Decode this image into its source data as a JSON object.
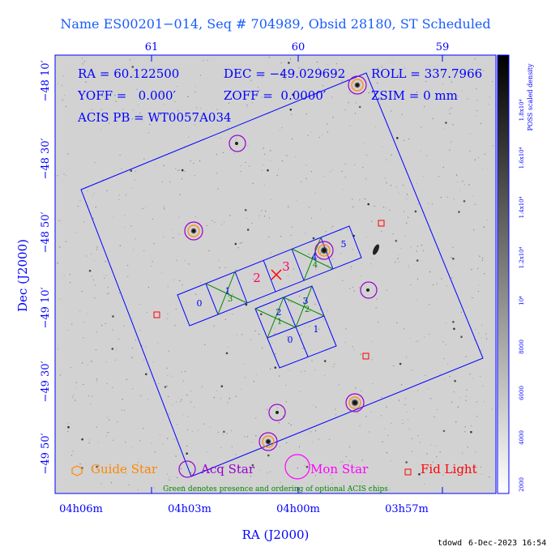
{
  "header": {
    "title": "Name ES00201−014, Seq # 704989, Obsid 28180, ST Scheduled"
  },
  "top_axis_ticks": [
    "61",
    "60",
    "59"
  ],
  "x_axis": {
    "label": "RA (J2000)",
    "ticks": [
      "04h06m",
      "04h03m",
      "04h00m",
      "03h57m"
    ]
  },
  "y_axis": {
    "label": "Dec (J2000)",
    "ticks": [
      "−48 10′",
      "−48 30′",
      "−48 50′",
      "−49 10′",
      "−49 30′",
      "−49 50′"
    ]
  },
  "info": {
    "ra": "RA = 60.122500",
    "dec": "DEC = −49.029692",
    "roll": "ROLL = 337.7966",
    "yoff": "YOFF =   0.000′",
    "zoff": "ZOFF =  0.0000′",
    "zsim": "ZSIM = 0 mm",
    "acis": "ACIS PB = WT0057A034"
  },
  "colorbar": {
    "label": "POSS scaled density",
    "ticks": [
      "2000",
      "4000",
      "6000",
      "8000",
      "10⁴",
      "1.2x10⁴",
      "1.4x10⁴",
      "1.6x10⁴",
      "1.8x10⁴"
    ]
  },
  "legend": {
    "guide": "Guide Star",
    "acq": "Acq Star",
    "mon": "Mon Star",
    "fid": "Fid Light",
    "note": "Green denotes presence and ordering of optional ACIS chips"
  },
  "chips": {
    "s_row": [
      "0",
      "1",
      "2",
      "3",
      "4",
      "5"
    ],
    "i_array": [
      "2",
      "3",
      "0",
      "1"
    ],
    "green_order": [
      "3",
      "4",
      "1",
      "2"
    ]
  },
  "footer": {
    "user": "tdowd",
    "date": "6-Dec-2023 16:54"
  },
  "colors": {
    "frame": "#0000ff",
    "guide": "#ff8800",
    "acq": "#8800cc",
    "mon": "#ff00ff",
    "fid": "#ff0000",
    "optional": "#008800"
  }
}
